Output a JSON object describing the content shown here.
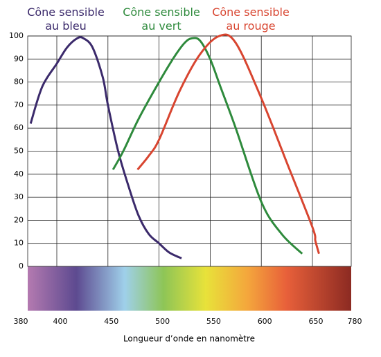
{
  "chart_data": {
    "type": "line",
    "xlabel": "Longueur d’onde en nanomètre",
    "xlim": [
      380,
      780
    ],
    "xticks": [
      380,
      400,
      450,
      500,
      550,
      600,
      650,
      780
    ],
    "ylim": [
      0,
      100
    ],
    "yticks": [
      0,
      10,
      20,
      30,
      40,
      50,
      60,
      70,
      80,
      90,
      100
    ],
    "grid": true,
    "series": [
      {
        "name": "Cône sensible au bleu",
        "color": "#3b2a6b",
        "x": [
          382,
          390,
          400,
          410,
          420,
          426,
          435,
          445,
          450,
          460,
          470,
          480,
          490,
          500,
          510,
          522
        ],
        "values": [
          62,
          78,
          88,
          95,
          99,
          99,
          95,
          82,
          70,
          50,
          35,
          22,
          14,
          10,
          6,
          3.5
        ]
      },
      {
        "name": "Cône sensible au vert",
        "color": "#2e8a3c",
        "x": [
          455,
          465,
          480,
          500,
          515,
          525,
          532,
          540,
          550,
          560,
          575,
          600,
          620,
          640
        ],
        "values": [
          42,
          50,
          64,
          80,
          91,
          97,
          99,
          98,
          90,
          78,
          60,
          28,
          14,
          5.5
        ]
      },
      {
        "name": "Cône sensible au rouge",
        "color": "#d84530",
        "x": [
          479,
          490,
          500,
          520,
          540,
          559,
          575,
          600,
          625,
          650,
          660,
          672
        ],
        "values": [
          42,
          48,
          55,
          76,
          92,
          100,
          97,
          73,
          45,
          17,
          11,
          5.5
        ]
      }
    ]
  }
}
